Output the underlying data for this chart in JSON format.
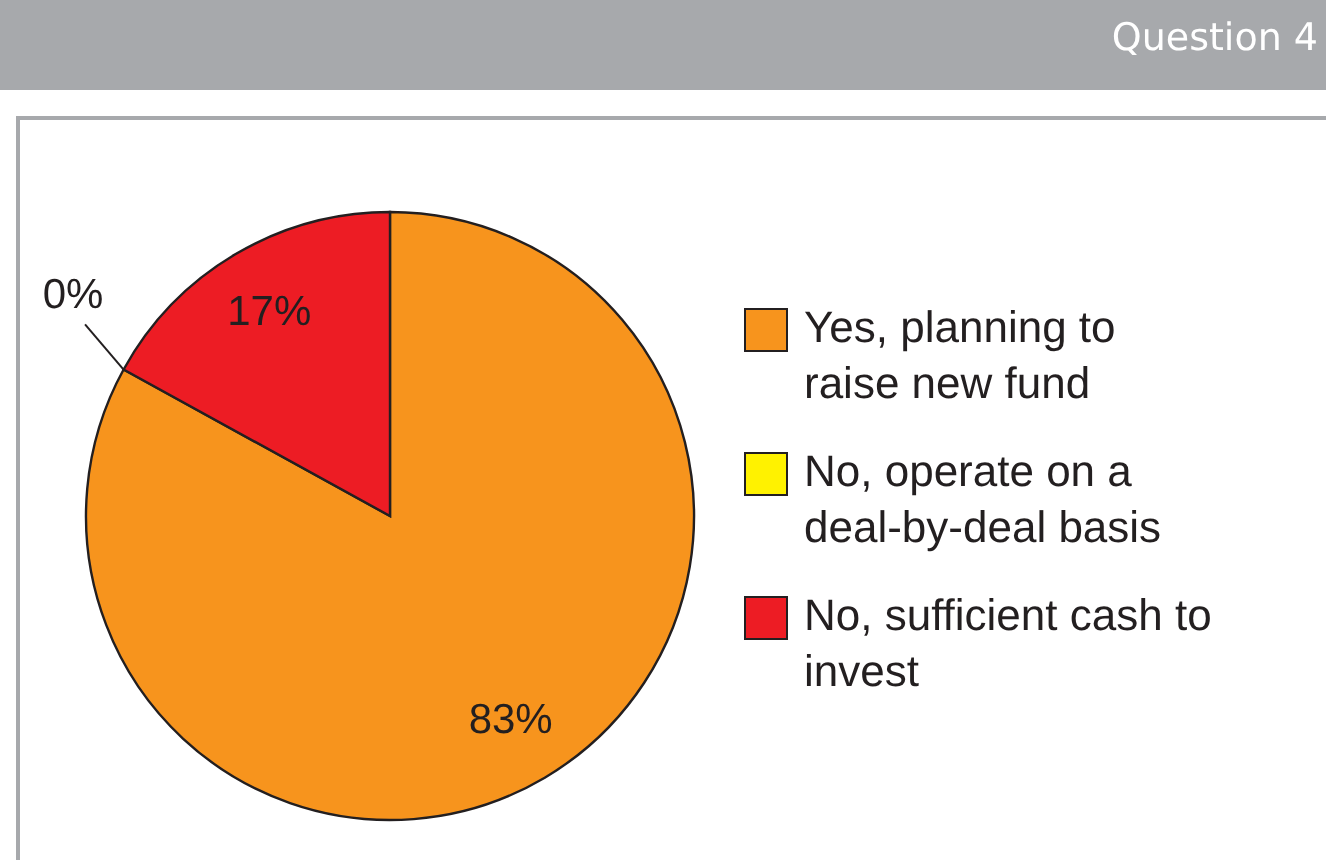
{
  "chart_data": {
    "type": "pie",
    "title": "Question 4",
    "categories": [
      "Yes, planning to raise new fund",
      "No, operate on a deal-by-deal basis",
      "No, sufficient cash to invest"
    ],
    "values": [
      83,
      0,
      17
    ],
    "value_labels": [
      "83%",
      "0%",
      "17%"
    ],
    "colors": [
      "#f7941d",
      "#fff200",
      "#ed1c24"
    ],
    "legend": "right"
  }
}
